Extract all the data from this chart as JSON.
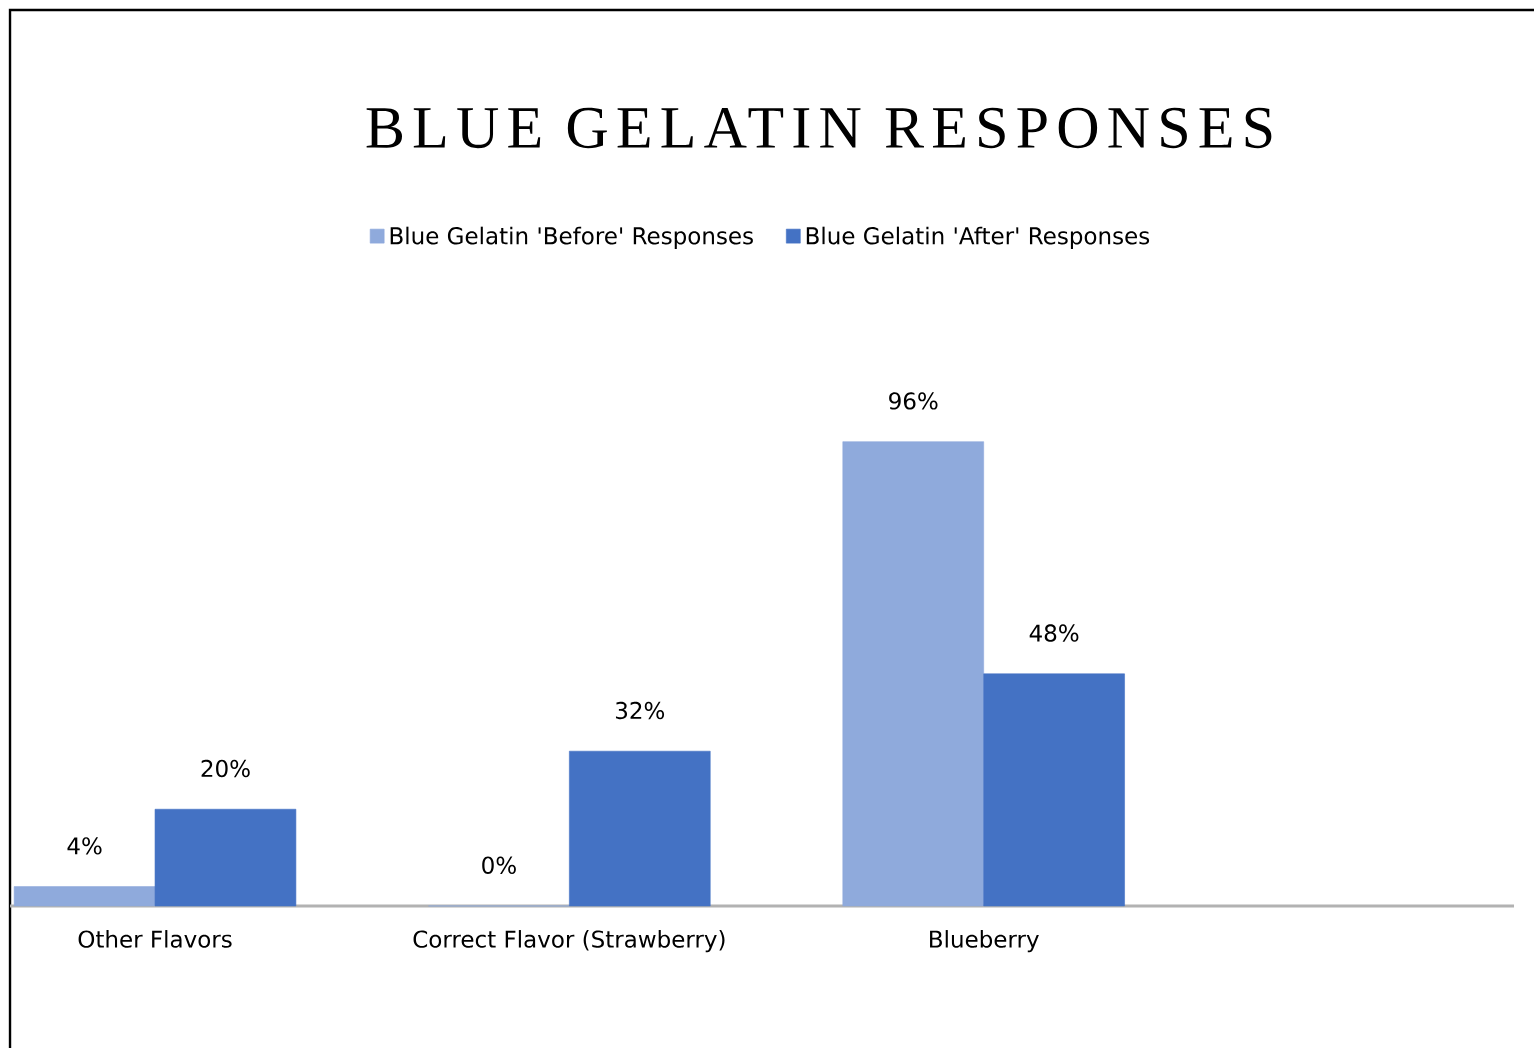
{
  "chart_data": {
    "type": "bar",
    "title": "BLUE GELATIN RESPONSES",
    "categories": [
      "Other Flavors",
      "Correct Flavor (Strawberry)",
      "Blueberry"
    ],
    "series": [
      {
        "name": "Blue Gelatin 'Before' Responses",
        "color": "#8faadc",
        "values": [
          4,
          0,
          96
        ],
        "value_labels": [
          "4%",
          "0%",
          "96%"
        ]
      },
      {
        "name": "Blue Gelatin 'After' Responses",
        "color": "#4472c4",
        "values": [
          20,
          32,
          48
        ],
        "value_labels": [
          "20%",
          "32%",
          "48%"
        ]
      }
    ],
    "legend": "top"
  }
}
